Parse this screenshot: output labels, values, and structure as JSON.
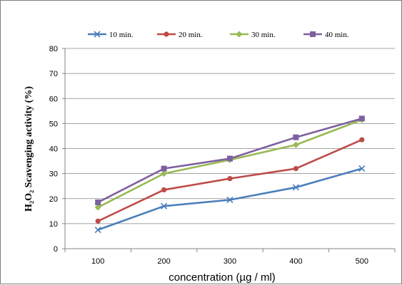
{
  "chart_data": {
    "type": "line",
    "title": "",
    "xlabel": "concentration (µg / ml)",
    "ylabel": "H₂O₂ Scavenging activity (%)",
    "categories": [
      "100",
      "200",
      "300",
      "400",
      "500"
    ],
    "ylim": [
      0,
      80
    ],
    "yticks": [
      0,
      10,
      20,
      30,
      40,
      50,
      60,
      70,
      80
    ],
    "grid": true,
    "legend_position": "top",
    "series": [
      {
        "name": "10 min.",
        "color": "#4a7ebb",
        "marker": "x",
        "values": [
          7.5,
          17,
          19.5,
          24.5,
          32
        ]
      },
      {
        "name": "20 min.",
        "color": "#be4b48",
        "marker": "circle",
        "values": [
          11,
          23.5,
          28,
          32,
          43.5
        ]
      },
      {
        "name": "30 min.",
        "color": "#98b954",
        "marker": "diamond",
        "values": [
          16.5,
          30,
          35.5,
          41.5,
          51.5
        ]
      },
      {
        "name": "40 min.",
        "color": "#7d60a0",
        "marker": "square",
        "values": [
          18.5,
          32,
          36,
          44.5,
          52
        ]
      }
    ]
  }
}
